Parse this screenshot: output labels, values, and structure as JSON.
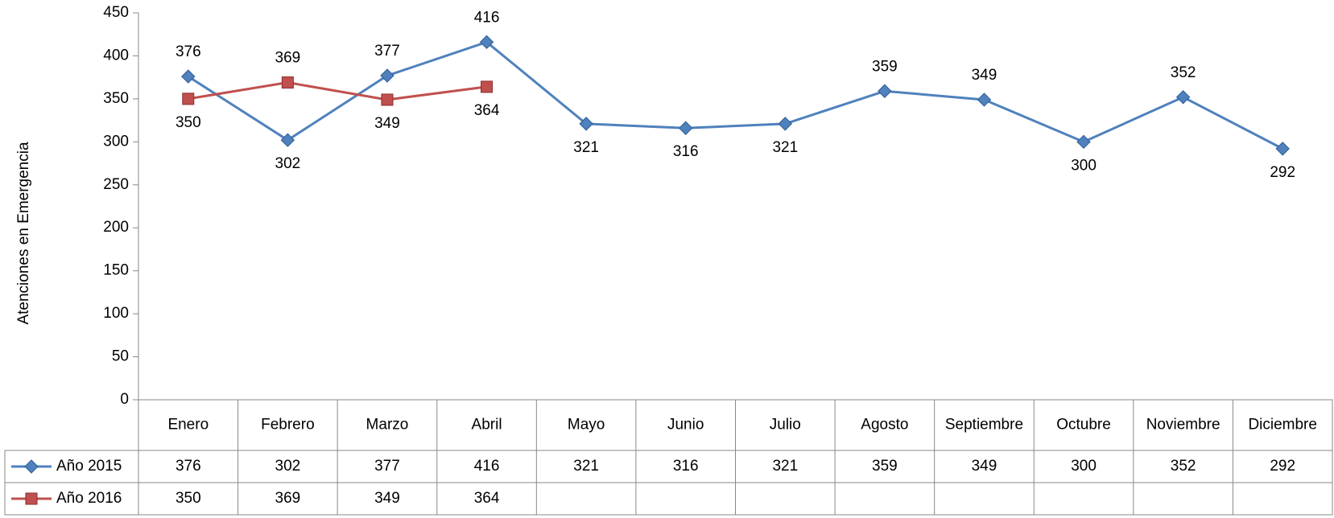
{
  "chart_data": {
    "type": "line",
    "y_label": "Atenciones en Emergencia",
    "categories": [
      "Enero",
      "Febrero",
      "Marzo",
      "Abril",
      "Mayo",
      "Junio",
      "Julio",
      "Agosto",
      "Septiembre",
      "Octubre",
      "Noviembre",
      "Diciembre"
    ],
    "series": [
      {
        "name": "Año 2015",
        "color": "#4f81bd",
        "marker": "diamond",
        "values": [
          376,
          302,
          377,
          416,
          321,
          316,
          321,
          359,
          349,
          300,
          352,
          292
        ]
      },
      {
        "name": "Año 2016",
        "color": "#c0504d",
        "marker": "square",
        "values": [
          350,
          369,
          349,
          364,
          null,
          null,
          null,
          null,
          null,
          null,
          null,
          null
        ]
      }
    ],
    "ylim": [
      0,
      450
    ],
    "yticks": [
      0,
      50,
      100,
      150,
      200,
      250,
      300,
      350,
      400,
      450
    ],
    "grid": false
  }
}
